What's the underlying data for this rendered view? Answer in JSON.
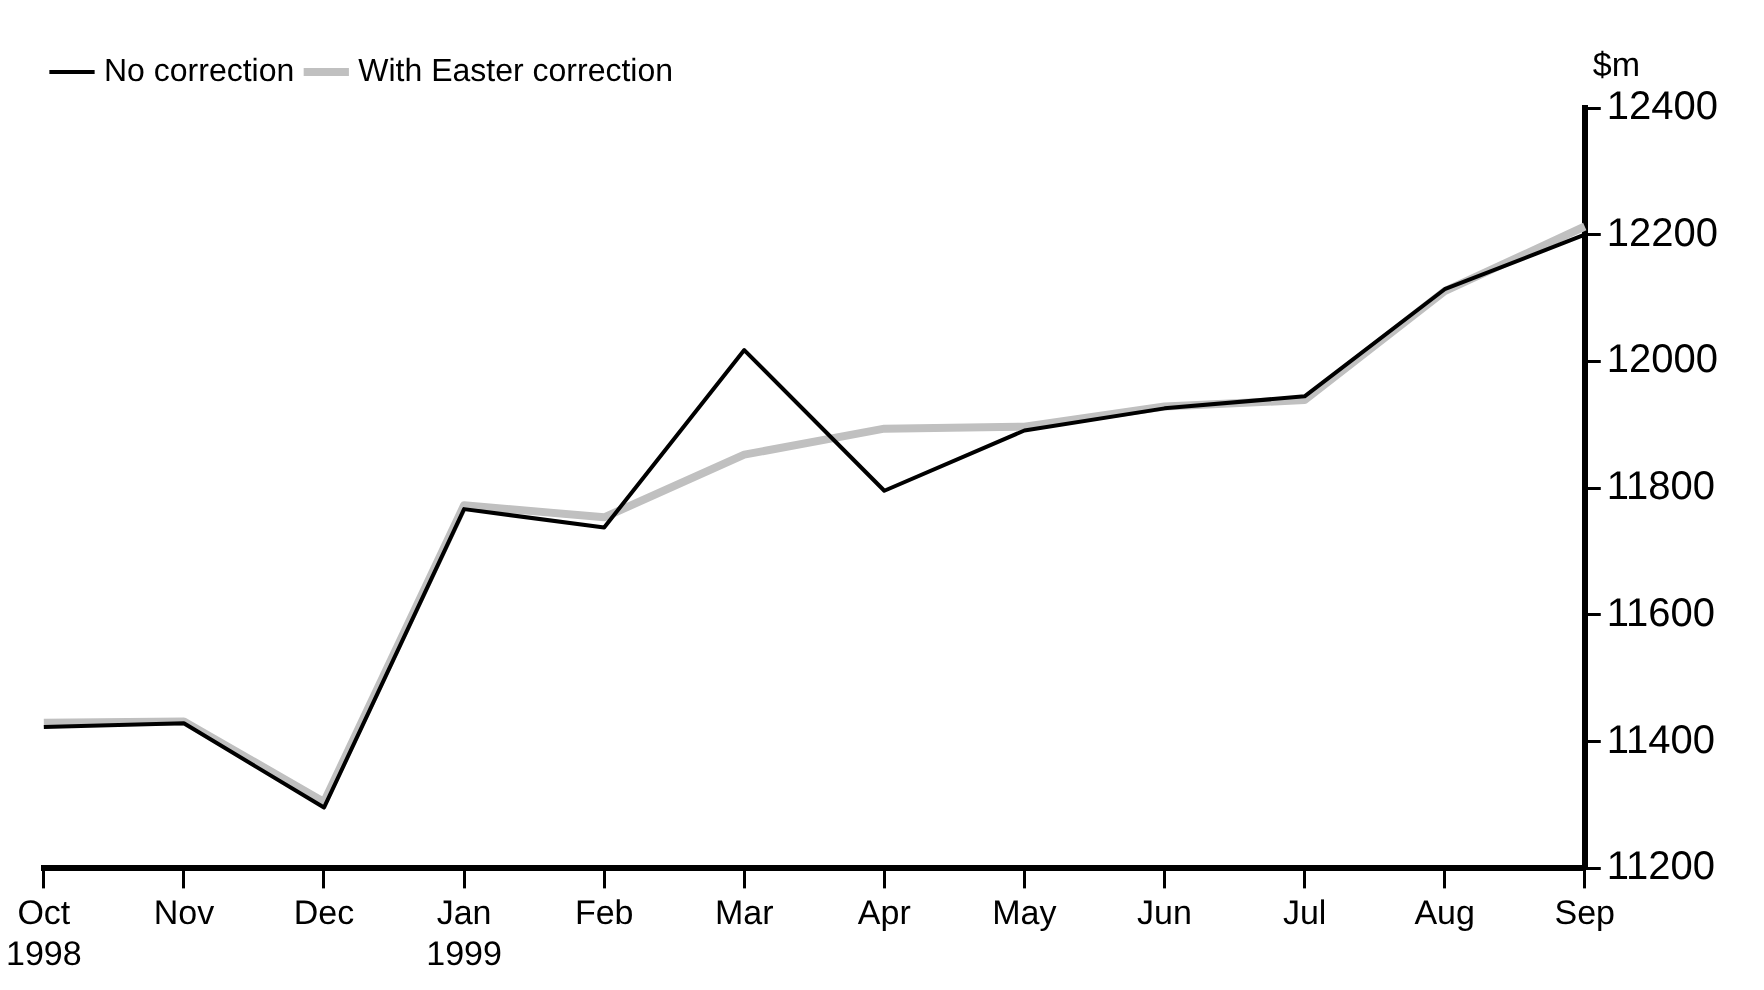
{
  "chart_data": {
    "type": "line",
    "ylabel": "$m",
    "categories": [
      "Oct\n1998",
      "Nov",
      "Dec",
      "Jan\n1999",
      "Feb",
      "Mar",
      "Apr",
      "May",
      "Jun",
      "Jul",
      "Aug",
      "Sep"
    ],
    "series": [
      {
        "name": "No correction",
        "color": "#000000",
        "values": [
          11423,
          11429,
          11296,
          11767,
          11738,
          12018,
          11796,
          11891,
          11926,
          11945,
          12114,
          12200
        ]
      },
      {
        "name": "With Easter correction",
        "color": "#c0c0c0",
        "values": [
          11430,
          11432,
          11305,
          11773,
          11754,
          11853,
          11894,
          11897,
          11929,
          11939,
          12111,
          12213
        ]
      }
    ],
    "ylim": [
      11200,
      12400
    ],
    "yticks": [
      11200,
      11400,
      11600,
      11800,
      12000,
      12200,
      12400
    ],
    "grid": false,
    "legend": "top left",
    "marker": "none",
    "line_style": "solid"
  }
}
